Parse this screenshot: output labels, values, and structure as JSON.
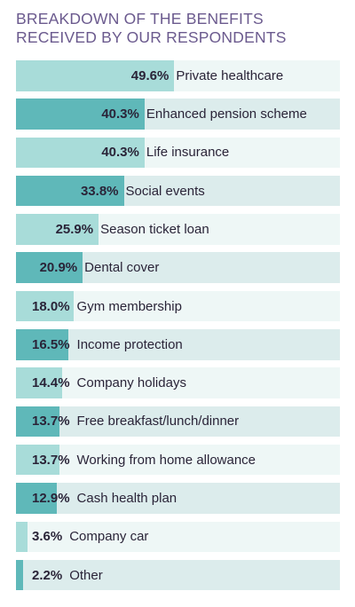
{
  "title_line1": "BREAKDOWN OF THE BENEFITS",
  "title_line2": "RECEIVED BY OUR RESPONDENTS",
  "colors": {
    "title": "#6b5a8e",
    "text": "#2a2438",
    "light_fill": "#a8dcd9",
    "light_track": "#eef7f6",
    "dark_fill": "#5fb8b9",
    "dark_track": "#dcecec"
  },
  "chart_data": {
    "type": "bar",
    "orientation": "horizontal",
    "title": "BREAKDOWN OF THE BENEFITS RECEIVED BY OUR RESPONDENTS",
    "xlim": [
      0,
      100
    ],
    "categories": [
      "Private healthcare",
      "Enhanced pension scheme",
      "Life insurance",
      "Social events",
      "Season ticket loan",
      "Dental cover",
      "Gym membership",
      "Income protection",
      "Company holidays",
      "Free breakfast/lunch/dinner",
      "Working from home allowance",
      "Cash health plan",
      "Company car",
      "Other"
    ],
    "values": [
      49.6,
      40.3,
      40.3,
      33.8,
      25.9,
      20.9,
      18.0,
      16.5,
      14.4,
      13.7,
      13.7,
      12.9,
      3.6,
      2.2
    ],
    "labels": [
      "49.6%",
      "40.3%",
      "40.3%",
      "33.8%",
      "25.9%",
      "20.9%",
      "18.0%",
      "16.5%",
      "14.4%",
      "13.7%",
      "13.7%",
      "12.9%",
      "3.6%",
      "2.2%"
    ]
  }
}
